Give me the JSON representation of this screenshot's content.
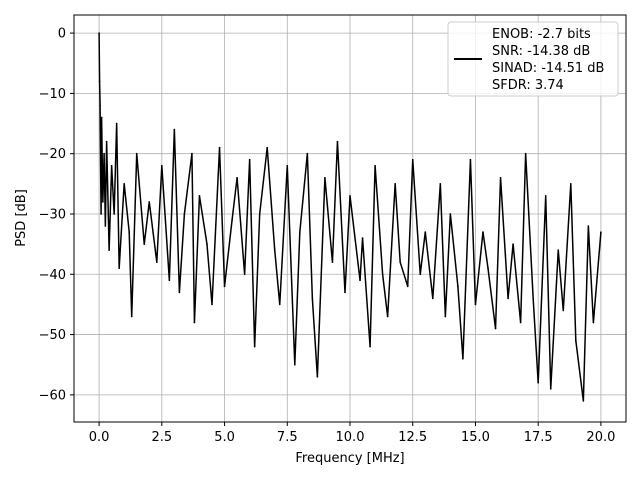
{
  "chart_data": {
    "type": "line",
    "title": "",
    "xlabel": "Frequency [MHz]",
    "ylabel": "PSD [dB]",
    "xlim": [
      -1.0,
      21.0
    ],
    "ylim": [
      -64.5,
      3.0
    ],
    "xticks": [
      0.0,
      2.5,
      5.0,
      7.5,
      10.0,
      12.5,
      15.0,
      17.5,
      20.0
    ],
    "xtick_labels": [
      "0.0",
      "2.5",
      "5.0",
      "7.5",
      "10.0",
      "12.5",
      "15.0",
      "17.5",
      "20.0"
    ],
    "yticks": [
      0,
      -10,
      -20,
      -30,
      -40,
      -50,
      -60
    ],
    "ytick_labels": [
      "0",
      "−10",
      "−20",
      "−30",
      "−40",
      "−50",
      "−60"
    ],
    "grid": true,
    "legend_position": "top-right",
    "legend_lines": [
      "ENOB: -2.7 bits",
      "SNR: -14.38 dB",
      "SINAD: -14.51 dB",
      "SFDR: 3.74"
    ],
    "series": [
      {
        "color": "#000000",
        "x": [
          0.0,
          0.02,
          0.04,
          0.06,
          0.08,
          0.1,
          0.15,
          0.2,
          0.25,
          0.3,
          0.4,
          0.5,
          0.6,
          0.7,
          0.8,
          1.0,
          1.2,
          1.3,
          1.5,
          1.8,
          2.0,
          2.3,
          2.5,
          2.8,
          3.0,
          3.2,
          3.4,
          3.7,
          3.8,
          4.0,
          4.3,
          4.5,
          4.8,
          5.0,
          5.3,
          5.5,
          5.8,
          6.0,
          6.2,
          6.4,
          6.7,
          7.0,
          7.2,
          7.5,
          7.8,
          8.0,
          8.3,
          8.5,
          8.7,
          9.0,
          9.3,
          9.5,
          9.8,
          10.0,
          10.4,
          10.5,
          10.8,
          11.0,
          11.3,
          11.5,
          11.8,
          12.0,
          12.3,
          12.5,
          12.8,
          13.0,
          13.3,
          13.6,
          13.8,
          14.0,
          14.3,
          14.5,
          14.8,
          15.0,
          15.3,
          15.5,
          15.8,
          16.0,
          16.3,
          16.5,
          16.8,
          17.0,
          17.3,
          17.5,
          17.8,
          18.0,
          18.3,
          18.5,
          18.8,
          19.0,
          19.3,
          19.5,
          19.7,
          20.0
        ],
        "y": [
          0.0,
          -8.0,
          -12.0,
          -22.0,
          -30.0,
          -14.0,
          -28.0,
          -20.0,
          -32.0,
          -18.0,
          -36.0,
          -22.0,
          -30.0,
          -15.0,
          -39.0,
          -25.0,
          -33.0,
          -47.0,
          -20.0,
          -35.0,
          -28.0,
          -38.0,
          -22.0,
          -41.0,
          -16.0,
          -43.0,
          -30.0,
          -20.0,
          -48.0,
          -27.0,
          -35.0,
          -45.0,
          -19.0,
          -42.0,
          -31.0,
          -24.0,
          -40.0,
          -21.0,
          -52.0,
          -30.0,
          -19.0,
          -36.0,
          -45.0,
          -22.0,
          -55.0,
          -33.0,
          -20.0,
          -44.0,
          -57.0,
          -24.0,
          -38.0,
          -18.0,
          -43.0,
          -27.0,
          -41.0,
          -34.0,
          -52.0,
          -22.0,
          -40.0,
          -47.0,
          -25.0,
          -38.0,
          -42.0,
          -21.0,
          -40.0,
          -33.0,
          -44.0,
          -25.0,
          -47.0,
          -30.0,
          -42.0,
          -54.0,
          -21.0,
          -45.0,
          -33.0,
          -39.0,
          -49.0,
          -24.0,
          -44.0,
          -35.0,
          -48.0,
          -20.0,
          -44.0,
          -58.0,
          -27.0,
          -59.0,
          -36.0,
          -46.0,
          -25.0,
          -51.0,
          -61.0,
          -32.0,
          -48.0,
          -33.0
        ]
      }
    ]
  }
}
